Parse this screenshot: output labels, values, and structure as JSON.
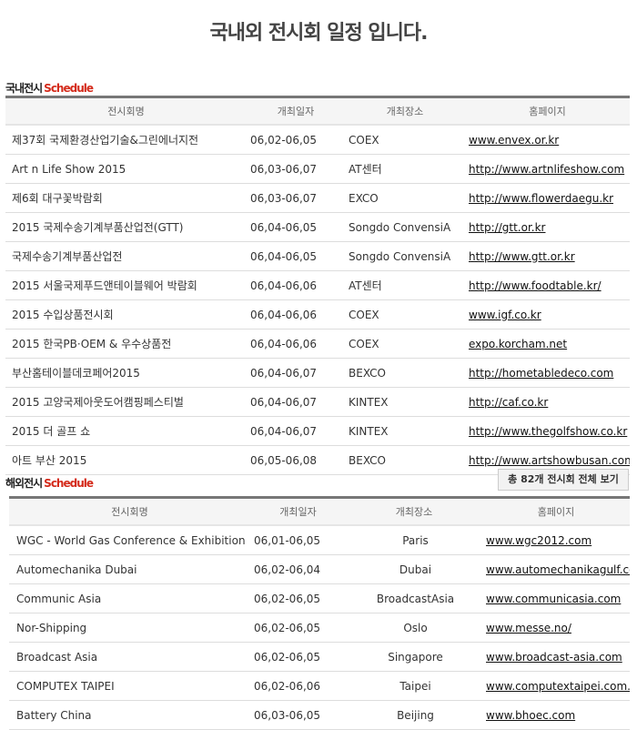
{
  "title": "국내외 전시회 일정 입니다.",
  "domestic": {
    "label": "국내전시",
    "label_accent": "Schedule",
    "headers": [
      "전시회명",
      "개최일자",
      "개최장소",
      "홈페이지"
    ],
    "rows": [
      [
        "제37회 국제환경산업기술&그린에너지전",
        "06,02-06,05",
        "COEX",
        "www.envex.or.kr"
      ],
      [
        "Art n Life Show 2015",
        "06,03-06,07",
        "AT센터",
        "http://www.artnlifeshow.com"
      ],
      [
        "제6회 대구꽃박람회",
        "06,03-06,07",
        "EXCO",
        "http://www.flowerdaegu.kr"
      ],
      [
        "2015 국제수송기계부품산업전(GTT)",
        "06,04-06,05",
        "Songdo ConvensiA",
        "http://gtt.or.kr"
      ],
      [
        "국제수송기계부품산업전",
        "06,04-06,05",
        "Songdo ConvensiA",
        "http://www.gtt.or.kr"
      ],
      [
        "2015 서울국제푸드앤테이블웨어 박람회",
        "06,04-06,06",
        "AT센터",
        "http://www.foodtable.kr/"
      ],
      [
        "2015 수입상품전시회",
        "06,04-06,06",
        "COEX",
        "www.igf.co.kr"
      ],
      [
        "2015 한국PB·OEM & 우수상품전",
        "06,04-06,06",
        "COEX",
        "expo.korcham.net"
      ],
      [
        "부산홈테이블데코페어2015",
        "06,04-06,07",
        "BEXCO",
        "http://hometabledeco.com"
      ],
      [
        "2015 고양국제아웃도어캠핑페스티벌",
        "06,04-06,07",
        "KINTEX",
        "http://caf.co.kr"
      ],
      [
        "2015 더 골프 쇼",
        "06,04-06,07",
        "KINTEX",
        "http://www.thegolfshow.co.kr"
      ],
      [
        "아트 부산 2015",
        "06,05-06,08",
        "BEXCO",
        "http://www.artshowbusan.com"
      ]
    ]
  },
  "overseas": {
    "label": "해외전시",
    "label_accent": "Schedule",
    "view_all": "총 82개 전시회 전체 보기",
    "headers": [
      "전시회명",
      "개최일자",
      "개최장소",
      "홈페이지"
    ],
    "rows": [
      [
        "WGC - World Gas Conference & Exhibition",
        "06,01-06,05",
        "Paris",
        "www.wgc2012.com"
      ],
      [
        "Automechanika Dubai",
        "06,02-06,04",
        "Dubai",
        "www.automechanikagulf.com"
      ],
      [
        "Communic Asia",
        "06,02-06,05",
        "BroadcastAsia",
        "www.communicasia.com"
      ],
      [
        "Nor-Shipping",
        "06,02-06,05",
        "Oslo",
        "www.messe.no/"
      ],
      [
        "Broadcast Asia",
        "06,02-06,05",
        "Singapore",
        "www.broadcast-asia.com"
      ],
      [
        "COMPUTEX TAIPEI",
        "06,02-06,06",
        "Taipei",
        "www.computextaipei.com.tw"
      ],
      [
        "Battery China",
        "06,03-06,05",
        "Beijing",
        "www.bhoec.com"
      ]
    ]
  }
}
